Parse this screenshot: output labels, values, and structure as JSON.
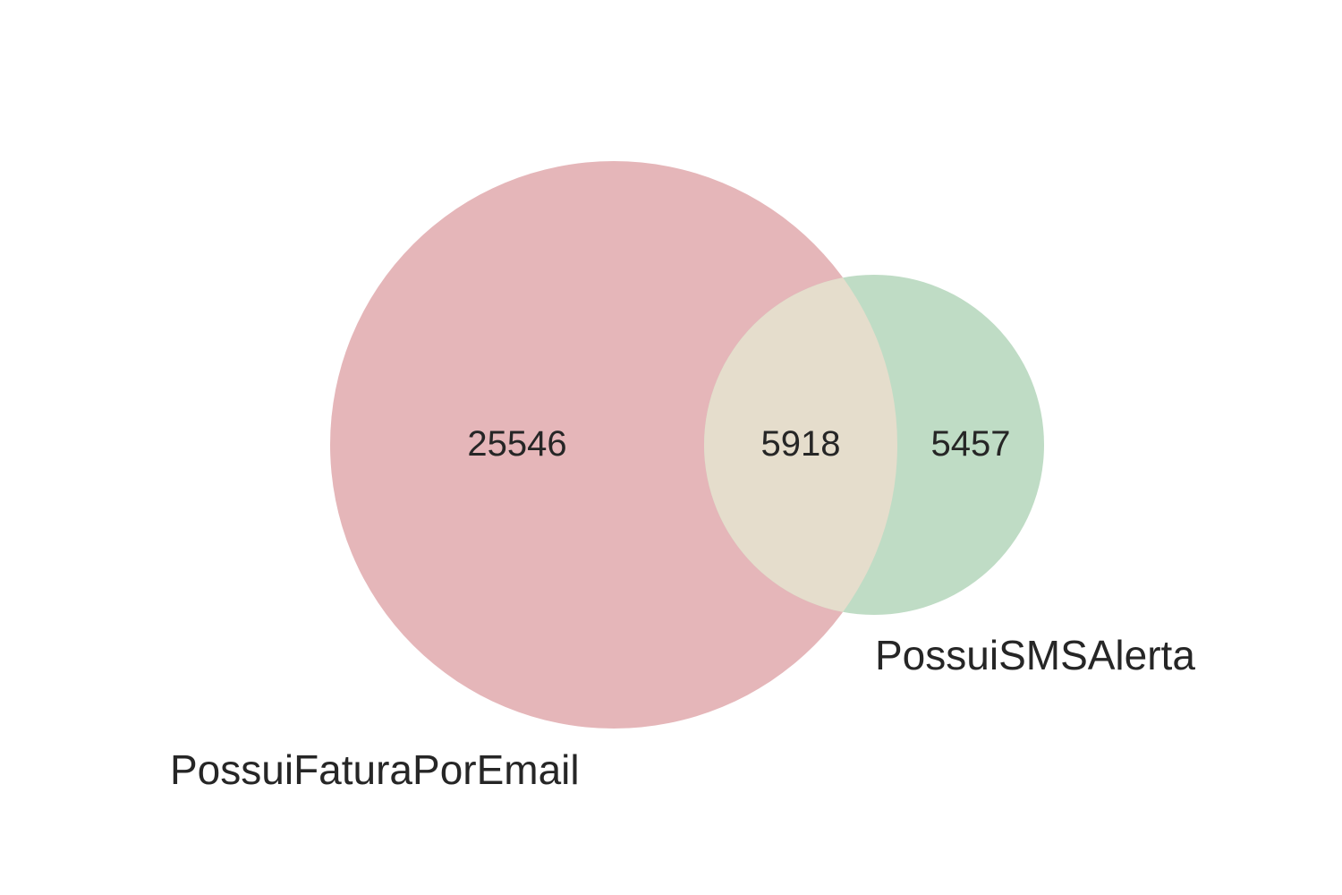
{
  "diagram": {
    "type": "venn2",
    "sets": [
      {
        "id": "A",
        "label": "PossuiFaturaPorEmail",
        "color": "#e5b6b9"
      },
      {
        "id": "B",
        "label": "PossuiSMSAlerta",
        "color": "#bfdcc5"
      }
    ],
    "regions": {
      "A_only": "25546",
      "intersection": "5918",
      "B_only": "5457"
    },
    "intersection_color": "#e5ddcc"
  }
}
